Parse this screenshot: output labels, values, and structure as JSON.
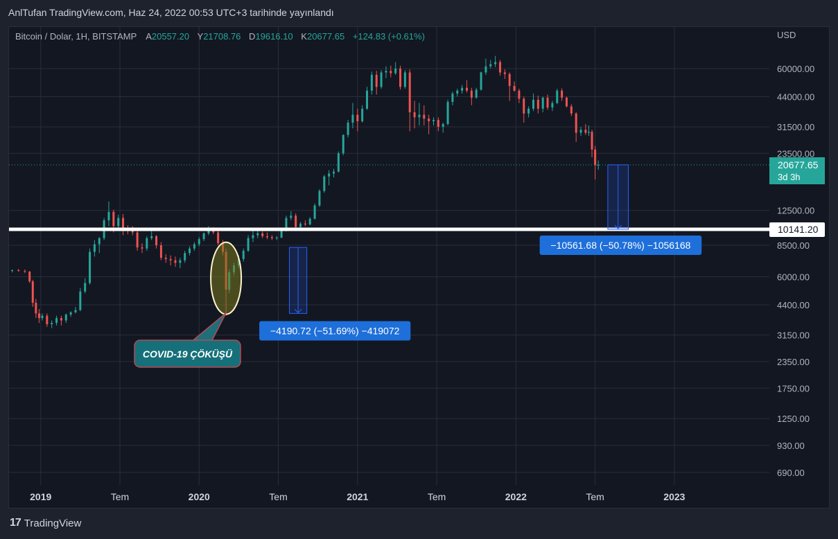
{
  "header": {
    "title": "AnlTufan TradingView.com, Haz 24, 2022 00:53 UTC+3 tarihinde yayınlandı"
  },
  "legend": {
    "symbol": "Bitcoin / Dolar, 1H, BITSTAMP",
    "open_label": "A",
    "open": "20557.20",
    "high_label": "Y",
    "high": "21708.76",
    "low_label": "D",
    "low": "19616.10",
    "close_label": "K",
    "close": "20677.65",
    "change": "+124.83 (+0.61%)"
  },
  "footer": {
    "brand": "TradingView",
    "logo_glyph": "17"
  },
  "colors": {
    "up": "#26a69a",
    "down": "#ef5350",
    "background": "#131722",
    "grid": "#2a2e39",
    "measure": "#2962ff"
  },
  "chart_data": {
    "type": "candlestick",
    "currency": "USD",
    "y_scale": "log",
    "y_range": [
      600,
      95000
    ],
    "y_ticks": [
      {
        "value": 60000,
        "label": "60000.00"
      },
      {
        "value": 44000,
        "label": "44000.00"
      },
      {
        "value": 31500,
        "label": "31500.00"
      },
      {
        "value": 23500,
        "label": "23500.00"
      },
      {
        "value": 12500,
        "label": "12500.00"
      },
      {
        "value": 8500,
        "label": "8500.00"
      },
      {
        "value": 6000,
        "label": "6000.00"
      },
      {
        "value": 4400,
        "label": "4400.00"
      },
      {
        "value": 3150,
        "label": "3150.00"
      },
      {
        "value": 2350,
        "label": "2350.00"
      },
      {
        "value": 1750,
        "label": "1750.00"
      },
      {
        "value": 1250,
        "label": "1250.00"
      },
      {
        "value": 930,
        "label": "930.00"
      },
      {
        "value": 690,
        "label": "690.00"
      }
    ],
    "x_range": [
      2018.8,
      2023.6
    ],
    "x_ticks": [
      {
        "value": 2019.0,
        "label": "2019",
        "bold": true
      },
      {
        "value": 2019.5,
        "label": "Tem",
        "bold": false
      },
      {
        "value": 2020.0,
        "label": "2020",
        "bold": true
      },
      {
        "value": 2020.5,
        "label": "Tem",
        "bold": false
      },
      {
        "value": 2021.0,
        "label": "2021",
        "bold": true
      },
      {
        "value": 2021.5,
        "label": "Tem",
        "bold": false
      },
      {
        "value": 2022.0,
        "label": "2022",
        "bold": true
      },
      {
        "value": 2022.5,
        "label": "Tem",
        "bold": false
      },
      {
        "value": 2023.0,
        "label": "2023",
        "bold": true
      }
    ],
    "price_line": {
      "value": 20677.65,
      "label": "20677.65",
      "sublabel": "3d 3h"
    },
    "support_line": {
      "value": 10141.2,
      "label": "10141.20"
    },
    "measure_boxes": [
      {
        "x0": 2020.57,
        "x1": 2020.68,
        "y_top": 8300,
        "y_bottom": 4000,
        "direction": "down"
      },
      {
        "x0": 2022.58,
        "x1": 2022.71,
        "y_top": 20700,
        "y_bottom": 10141.2,
        "direction": "down"
      }
    ],
    "measure_labels": [
      {
        "text": "−4190.72 (−51.69%) −419072",
        "x": 2020.38,
        "y": 3300
      },
      {
        "text": "−10561.68 (−50.78%) −1056168",
        "x": 2022.15,
        "y": 8500
      }
    ],
    "annotation": {
      "text": "COVID-19 ÇÖKÜŞÜ",
      "target_x": 2020.17,
      "target_y": 5900
    },
    "candles": [
      [
        2018.82,
        6400,
        6500,
        6300,
        6450
      ],
      [
        2018.86,
        6450,
        6550,
        6350,
        6400
      ],
      [
        2018.9,
        6400,
        6500,
        6250,
        6350
      ],
      [
        2018.93,
        6350,
        6400,
        5600,
        5700
      ],
      [
        2018.95,
        5700,
        5800,
        4300,
        4500
      ],
      [
        2018.97,
        4500,
        4700,
        3800,
        4000
      ],
      [
        2018.99,
        4000,
        4200,
        3600,
        3800
      ],
      [
        2019.01,
        3800,
        4000,
        3700,
        3900
      ],
      [
        2019.04,
        3900,
        4000,
        3450,
        3550
      ],
      [
        2019.07,
        3550,
        3700,
        3400,
        3600
      ],
      [
        2019.1,
        3600,
        3900,
        3500,
        3800
      ],
      [
        2019.13,
        3800,
        3900,
        3500,
        3700
      ],
      [
        2019.16,
        3700,
        4000,
        3600,
        3950
      ],
      [
        2019.19,
        3950,
        4100,
        3850,
        4050
      ],
      [
        2019.22,
        4050,
        4300,
        4000,
        4150
      ],
      [
        2019.25,
        4150,
        5300,
        4100,
        5100
      ],
      [
        2019.28,
        5100,
        5900,
        5000,
        5600
      ],
      [
        2019.31,
        5600,
        8200,
        5500,
        7900
      ],
      [
        2019.34,
        7900,
        9000,
        7500,
        8600
      ],
      [
        2019.37,
        8600,
        9300,
        7800,
        9200
      ],
      [
        2019.4,
        9200,
        11500,
        9000,
        11200
      ],
      [
        2019.43,
        11200,
        13800,
        10500,
        12300
      ],
      [
        2019.46,
        12300,
        12600,
        9800,
        10500
      ],
      [
        2019.49,
        10500,
        11900,
        10000,
        11500
      ],
      [
        2019.52,
        11500,
        12000,
        9500,
        10200
      ],
      [
        2019.55,
        10200,
        10600,
        9600,
        10100
      ],
      [
        2019.58,
        10100,
        10500,
        9500,
        9800
      ],
      [
        2019.61,
        9800,
        10200,
        8000,
        8300
      ],
      [
        2019.64,
        8300,
        8700,
        7800,
        8200
      ],
      [
        2019.67,
        8200,
        9400,
        8000,
        9200
      ],
      [
        2019.7,
        9200,
        10300,
        9000,
        9400
      ],
      [
        2019.73,
        9400,
        9500,
        8200,
        8500
      ],
      [
        2019.76,
        8500,
        8800,
        7200,
        7400
      ],
      [
        2019.79,
        7400,
        7700,
        7000,
        7300
      ],
      [
        2019.82,
        7300,
        7600,
        6800,
        7200
      ],
      [
        2019.85,
        7200,
        7500,
        6700,
        7000
      ],
      [
        2019.88,
        7000,
        7400,
        6600,
        7200
      ],
      [
        2019.91,
        7200,
        8000,
        7000,
        7800
      ],
      [
        2019.94,
        7800,
        8400,
        7600,
        8200
      ],
      [
        2019.97,
        8200,
        8800,
        8000,
        8600
      ],
      [
        2020.0,
        8600,
        9300,
        8400,
        9100
      ],
      [
        2020.03,
        9100,
        9800,
        8900,
        9700
      ],
      [
        2020.06,
        9700,
        10500,
        9500,
        10200
      ],
      [
        2020.09,
        10200,
        10400,
        9600,
        9800
      ],
      [
        2020.12,
        9800,
        10000,
        8500,
        8700
      ],
      [
        2020.15,
        8700,
        9000,
        7600,
        7900
      ],
      [
        2020.17,
        7900,
        8200,
        3900,
        5200
      ],
      [
        2020.19,
        5200,
        6500,
        5000,
        6300
      ],
      [
        2020.22,
        6300,
        7000,
        6100,
        6800
      ],
      [
        2020.25,
        6800,
        7600,
        6600,
        7300
      ],
      [
        2020.28,
        7300,
        8200,
        7100,
        8000
      ],
      [
        2020.31,
        8000,
        9500,
        7900,
        9200
      ],
      [
        2020.34,
        9200,
        10000,
        8800,
        9500
      ],
      [
        2020.37,
        9500,
        10200,
        9200,
        9700
      ],
      [
        2020.4,
        9700,
        9900,
        9200,
        9400
      ],
      [
        2020.43,
        9400,
        9800,
        9100,
        9300
      ],
      [
        2020.46,
        9300,
        9500,
        9000,
        9200
      ],
      [
        2020.49,
        9200,
        9400,
        9000,
        9250
      ],
      [
        2020.52,
        9250,
        10200,
        9200,
        10000
      ],
      [
        2020.55,
        10000,
        11800,
        9900,
        11500
      ],
      [
        2020.58,
        11500,
        12400,
        11200,
        11800
      ],
      [
        2020.61,
        11800,
        12100,
        10200,
        10400
      ],
      [
        2020.64,
        10400,
        11000,
        10200,
        10800
      ],
      [
        2020.67,
        10800,
        11200,
        10500,
        10700
      ],
      [
        2020.7,
        10700,
        11600,
        10600,
        11400
      ],
      [
        2020.73,
        11400,
        13500,
        11300,
        13200
      ],
      [
        2020.76,
        13200,
        15800,
        13000,
        15500
      ],
      [
        2020.79,
        15500,
        18500,
        15200,
        18200
      ],
      [
        2020.82,
        18200,
        19500,
        16500,
        18800
      ],
      [
        2020.85,
        18800,
        19800,
        18000,
        19200
      ],
      [
        2020.88,
        19200,
        24000,
        19000,
        23500
      ],
      [
        2020.91,
        23500,
        29000,
        23000,
        28800
      ],
      [
        2020.94,
        28800,
        34000,
        28000,
        33000
      ],
      [
        2020.97,
        33000,
        41000,
        31000,
        36000
      ],
      [
        2021.0,
        36000,
        38500,
        30000,
        33500
      ],
      [
        2021.03,
        33500,
        40000,
        33000,
        38500
      ],
      [
        2021.06,
        38500,
        49000,
        38000,
        47000
      ],
      [
        2021.09,
        47000,
        58000,
        45000,
        56000
      ],
      [
        2021.12,
        56000,
        58500,
        45000,
        49000
      ],
      [
        2021.15,
        49000,
        59000,
        48000,
        57500
      ],
      [
        2021.18,
        57500,
        61500,
        54000,
        58500
      ],
      [
        2021.21,
        58500,
        62000,
        54500,
        57000
      ],
      [
        2021.24,
        57000,
        64500,
        56000,
        60000
      ],
      [
        2021.27,
        60000,
        62000,
        47500,
        49000
      ],
      [
        2021.3,
        49000,
        59000,
        48000,
        57500
      ],
      [
        2021.33,
        57500,
        59500,
        30000,
        37000
      ],
      [
        2021.36,
        37000,
        42000,
        31000,
        35000
      ],
      [
        2021.39,
        35000,
        41000,
        32000,
        36000
      ],
      [
        2021.42,
        36000,
        40000,
        32000,
        34500
      ],
      [
        2021.45,
        34500,
        36000,
        29000,
        33500
      ],
      [
        2021.48,
        33500,
        35000,
        32000,
        34000
      ],
      [
        2021.51,
        34000,
        35000,
        30000,
        31500
      ],
      [
        2021.54,
        31500,
        33000,
        29500,
        32500
      ],
      [
        2021.57,
        32500,
        42500,
        32000,
        41500
      ],
      [
        2021.6,
        41500,
        46500,
        40000,
        45500
      ],
      [
        2021.63,
        45500,
        48000,
        44000,
        47000
      ],
      [
        2021.66,
        47000,
        50000,
        45500,
        48500
      ],
      [
        2021.69,
        48500,
        52800,
        46000,
        47000
      ],
      [
        2021.72,
        47000,
        48500,
        40000,
        43500
      ],
      [
        2021.75,
        43500,
        48500,
        43000,
        47500
      ],
      [
        2021.78,
        47500,
        58000,
        47000,
        57500
      ],
      [
        2021.81,
        57500,
        67000,
        56000,
        61500
      ],
      [
        2021.84,
        61500,
        66000,
        60000,
        63000
      ],
      [
        2021.87,
        63000,
        69000,
        61000,
        64500
      ],
      [
        2021.9,
        64500,
        66000,
        55500,
        57500
      ],
      [
        2021.93,
        57500,
        59500,
        53500,
        56500
      ],
      [
        2021.96,
        56500,
        57500,
        42000,
        49500
      ],
      [
        2021.99,
        49500,
        52000,
        46500,
        47000
      ],
      [
        2022.02,
        47000,
        48000,
        41000,
        43000
      ],
      [
        2022.05,
        43000,
        44000,
        33000,
        36500
      ],
      [
        2022.08,
        36500,
        39500,
        35000,
        38500
      ],
      [
        2022.11,
        38500,
        45500,
        37500,
        42500
      ],
      [
        2022.14,
        42500,
        44500,
        36500,
        38500
      ],
      [
        2022.17,
        38500,
        44000,
        37000,
        43500
      ],
      [
        2022.2,
        43500,
        45000,
        38000,
        39000
      ],
      [
        2022.23,
        39000,
        42000,
        37500,
        41000
      ],
      [
        2022.26,
        41000,
        48000,
        40500,
        47000
      ],
      [
        2022.29,
        47000,
        48200,
        42000,
        43500
      ],
      [
        2022.32,
        43500,
        44000,
        39000,
        39500
      ],
      [
        2022.35,
        39500,
        40500,
        35500,
        36500
      ],
      [
        2022.38,
        36500,
        37000,
        26700,
        29500
      ],
      [
        2022.41,
        29500,
        31500,
        28500,
        30500
      ],
      [
        2022.44,
        30500,
        32500,
        28800,
        29500
      ],
      [
        2022.46,
        29500,
        32000,
        28500,
        29800
      ],
      [
        2022.48,
        29800,
        30500,
        22500,
        24500
      ],
      [
        2022.5,
        24500,
        25500,
        17600,
        20600
      ],
      [
        2022.52,
        20600,
        21700,
        19600,
        20677.65
      ]
    ]
  }
}
